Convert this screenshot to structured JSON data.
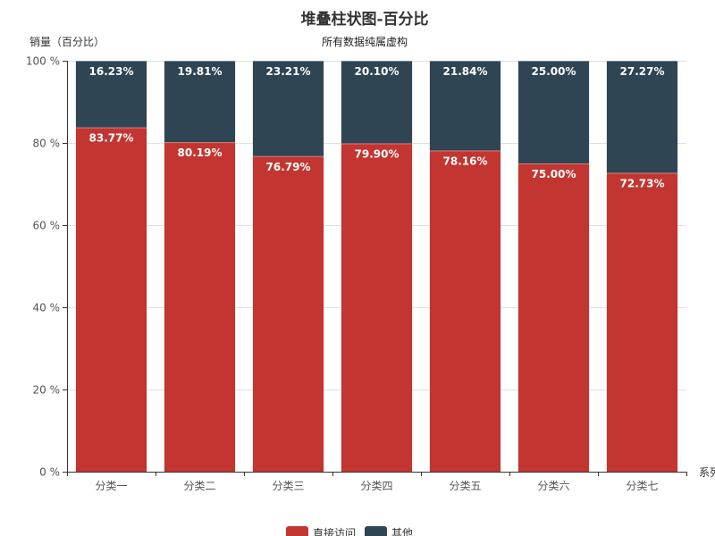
{
  "chart_data": {
    "type": "bar",
    "stacked": true,
    "title": "堆叠柱状图-百分比",
    "subtitle": "所有数据纯属虚构",
    "ylabel": "销量（百分比）",
    "xlabel": "系列",
    "ylim": [
      0,
      100
    ],
    "y_ticks": [
      "0 %",
      "20 %",
      "40 %",
      "60 %",
      "80 %",
      "100 %"
    ],
    "categories": [
      "分类一",
      "分类二",
      "分类三",
      "分类四",
      "分类五",
      "分类六",
      "分类七"
    ],
    "series": [
      {
        "name": "直接访问",
        "color": "#c23531",
        "values": [
          83.77,
          80.19,
          76.79,
          79.9,
          78.16,
          75.0,
          72.73
        ],
        "labels": [
          "83.77%",
          "80.19%",
          "76.79%",
          "79.90%",
          "78.16%",
          "75.00%",
          "72.73%"
        ]
      },
      {
        "name": "其他",
        "color": "#2f4554",
        "values": [
          16.23,
          19.81,
          23.21,
          20.1,
          21.84,
          25.0,
          27.27
        ],
        "labels": [
          "16.23%",
          "19.81%",
          "23.21%",
          "20.10%",
          "21.84%",
          "25.00%",
          "27.27%"
        ]
      }
    ],
    "grid": true,
    "legend_position": "bottom-center"
  }
}
